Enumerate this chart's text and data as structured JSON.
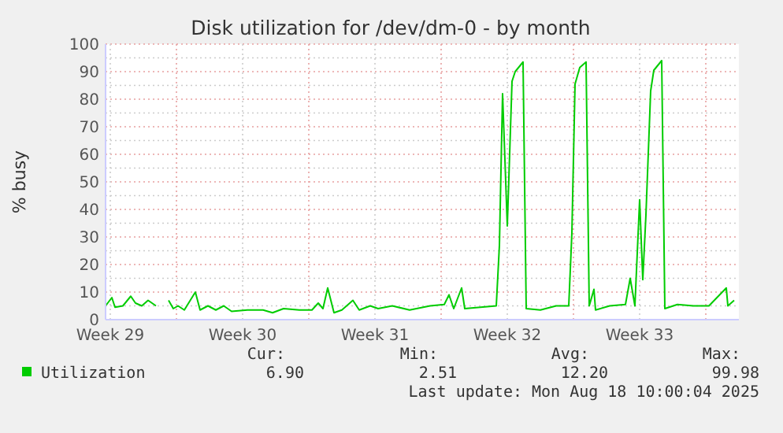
{
  "chart_data": {
    "type": "line",
    "title": "Disk utilization for /dev/dm-0 - by month",
    "ylabel": "% busy",
    "xlim": [
      "2025-07-17T06:00",
      "2025-08-19T18:00"
    ],
    "xticks": [
      {
        "value": "2025-07-17T12:00",
        "label": "Week 29"
      },
      {
        "value": "2025-07-24T12:00",
        "label": "Week 30"
      },
      {
        "value": "2025-07-31T12:00",
        "label": "Week 31"
      },
      {
        "value": "2025-08-07T12:00",
        "label": "Week 32"
      },
      {
        "value": "2025-08-14T12:00",
        "label": "Week 33"
      },
      {
        "value": "2025-07-21T00:00",
        "label": null
      },
      {
        "value": "2025-07-28T00:00",
        "label": null
      },
      {
        "value": "2025-08-04T00:00",
        "label": null
      },
      {
        "value": "2025-08-11T00:00",
        "label": null
      },
      {
        "value": "2025-08-18T00:00",
        "label": null
      }
    ],
    "ylim": [
      0,
      100
    ],
    "yticks": [
      0,
      10,
      20,
      30,
      40,
      50,
      60,
      70,
      80,
      90,
      100,
      {
        "value": 5,
        "label": null
      },
      {
        "value": 15,
        "label": null
      },
      {
        "value": 25,
        "label": null
      },
      {
        "value": 35,
        "label": null
      },
      {
        "value": 45,
        "label": null
      },
      {
        "value": 55,
        "label": null
      },
      {
        "value": 65,
        "label": null
      },
      {
        "value": 75,
        "label": null
      },
      {
        "value": 85,
        "label": null
      },
      {
        "value": 95,
        "label": null
      }
    ],
    "grid": true,
    "legend": "bottom left",
    "series": [
      {
        "name": "Utilization",
        "color": "#00cc00",
        "x": [
          "2025-07-17T06:00",
          "2025-07-17T14:00",
          "2025-07-17T18:00",
          "2025-07-18T04:00",
          "2025-07-18T14:00",
          "2025-07-18T20:00",
          "2025-07-19T04:00",
          "2025-07-19T12:00",
          "2025-07-19T22:00",
          "2025-07-20T04:00",
          "2025-07-20T14:00",
          "2025-07-20T20:00",
          "2025-07-21T02:00",
          "2025-07-21T10:00",
          "2025-07-22T00:00",
          "2025-07-22T06:00",
          "2025-07-22T16:00",
          "2025-07-23T02:00",
          "2025-07-23T12:00",
          "2025-07-23T22:00",
          "2025-07-24T18:00",
          "2025-07-25T14:00",
          "2025-07-26T02:00",
          "2025-07-26T16:00",
          "2025-07-27T12:00",
          "2025-07-28T04:00",
          "2025-07-28T12:00",
          "2025-07-28T18:00",
          "2025-07-29T00:00",
          "2025-07-29T08:00",
          "2025-07-29T18:00",
          "2025-07-30T08:00",
          "2025-07-30T16:00",
          "2025-07-31T06:00",
          "2025-07-31T16:00",
          "2025-08-01T10:00",
          "2025-08-02T08:00",
          "2025-08-03T10:00",
          "2025-08-04T04:00",
          "2025-08-04T10:00",
          "2025-08-04T16:00",
          "2025-08-05T02:00",
          "2025-08-05T06:00",
          "2025-08-06T22:00",
          "2025-08-07T02:00",
          "2025-08-07T06:00",
          "2025-08-07T12:00",
          "2025-08-07T18:00",
          "2025-08-07T22:00",
          "2025-08-08T08:00",
          "2025-08-08T12:00",
          "2025-08-09T06:00",
          "2025-08-10T02:00",
          "2025-08-10T18:00",
          "2025-08-10T22:00",
          "2025-08-11T02:00",
          "2025-08-11T08:00",
          "2025-08-11T16:00",
          "2025-08-11T20:00",
          "2025-08-12T02:00",
          "2025-08-12T04:00",
          "2025-08-12T22:00",
          "2025-08-13T18:00",
          "2025-08-14T00:00",
          "2025-08-14T06:00",
          "2025-08-14T12:00",
          "2025-08-14T16:00",
          "2025-08-14T20:00",
          "2025-08-15T02:00",
          "2025-08-15T06:00",
          "2025-08-15T16:00",
          "2025-08-15T20:00",
          "2025-08-16T12:00",
          "2025-08-17T08:00",
          "2025-08-18T04:00",
          "2025-08-19T02:00",
          "2025-08-19T04:00",
          "2025-08-19T12:00"
        ],
        "values": [
          5,
          8,
          4.5,
          5,
          8.5,
          6,
          5,
          7,
          5,
          null,
          7,
          4,
          5,
          3.5,
          10,
          3.5,
          5,
          3.5,
          5,
          3,
          3.5,
          3.5,
          2.5,
          4,
          3.5,
          3.5,
          6,
          4,
          11.5,
          2.5,
          3.5,
          7,
          3.5,
          5,
          4,
          5,
          3.5,
          5,
          5.5,
          9,
          4,
          11.5,
          4,
          5,
          27,
          82,
          34,
          86.5,
          90,
          93.5,
          4,
          3.5,
          5,
          5,
          31.5,
          85.5,
          91.5,
          93.5,
          5,
          11,
          3.5,
          5,
          5.5,
          15,
          5,
          43.5,
          14.5,
          38,
          83,
          90.5,
          94,
          4,
          5.5,
          5,
          5,
          11.5,
          5,
          7
        ]
      }
    ],
    "annotations": [
      "Cur:",
      "6.90",
      "Min:",
      "2.51",
      "Avg:",
      "12.20",
      "Max:",
      "99.98",
      "Last update: Mon Aug 18 10:00:04 2025"
    ]
  }
}
